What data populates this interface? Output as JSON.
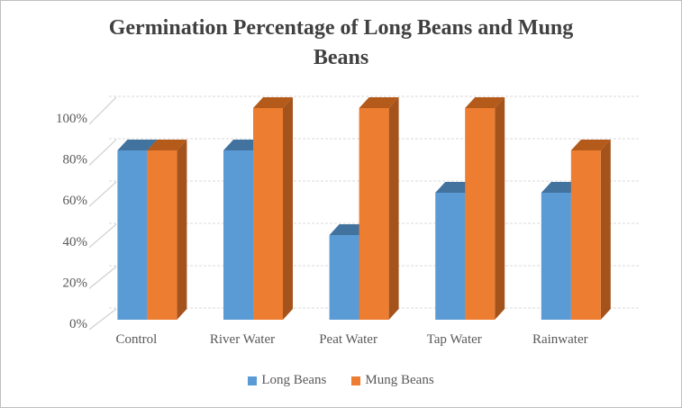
{
  "chart_data": {
    "type": "bar",
    "style": "3d-clustered-column",
    "title": "Germination Percentage of Long Beans and Mung Beans",
    "categories": [
      "Control",
      "River Water",
      "Peat Water",
      "Tap Water",
      "Rainwater"
    ],
    "series": [
      {
        "name": "Long Beans",
        "values": [
          80,
          80,
          40,
          60,
          60
        ],
        "color": "#5B9BD5",
        "color_top": "#42729E",
        "color_side": "#3B6993"
      },
      {
        "name": "Mung Beans",
        "values": [
          80,
          100,
          100,
          100,
          80
        ],
        "color": "#ED7D31",
        "color_top": "#B45A1A",
        "color_side": "#A5531D"
      }
    ],
    "y_ticks": [
      "0%",
      "20%",
      "40%",
      "60%",
      "80%",
      "100%"
    ],
    "y_tick_values": [
      0,
      20,
      40,
      60,
      80,
      100
    ],
    "ylim": [
      0,
      100
    ],
    "xlabel": "",
    "ylabel": "",
    "grid": true,
    "legend_position": "bottom",
    "text_color": "#595959",
    "title_color": "#404040",
    "gridline_color": "#D9D9D9",
    "tick_line_color": "#CFCFCF"
  }
}
